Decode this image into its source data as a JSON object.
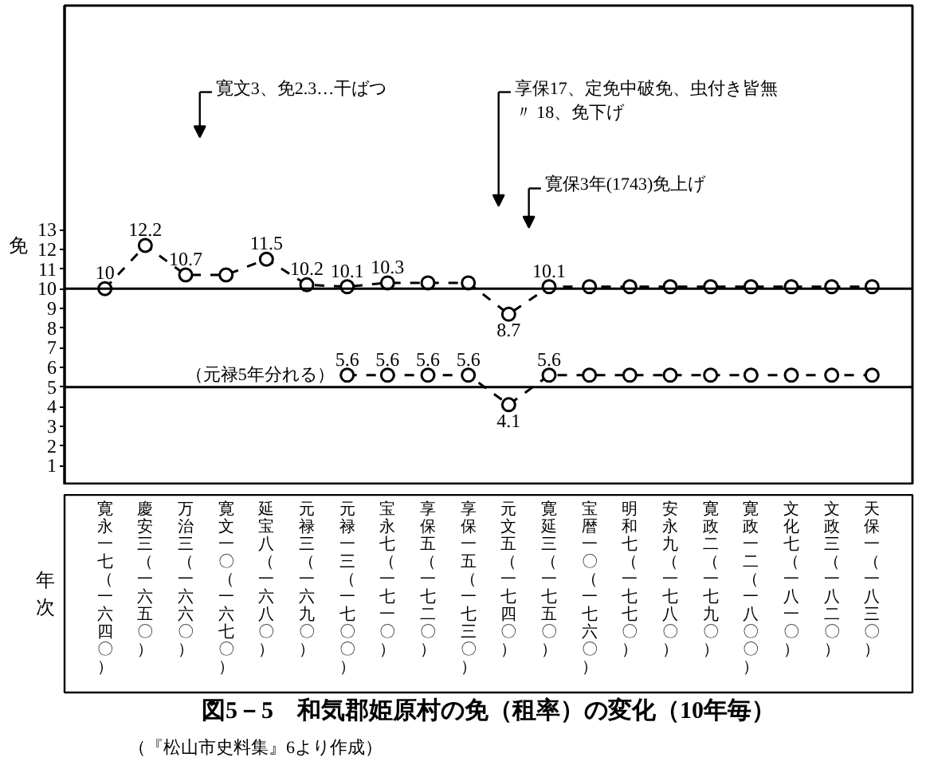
{
  "chart_data": {
    "type": "line",
    "title": "図5－5　和気郡姫原村の免（租率）の変化（10年毎）",
    "xlabel": "年次",
    "ylabel": "免",
    "categories": [
      "寛永一七（一六四〇）",
      "慶安三（一六五〇）",
      "万治三（一六六〇）",
      "寛文一〇（一六七〇）",
      "延宝八（一六八〇）",
      "元禄三（一六九〇）",
      "元禄一三（一七〇〇）",
      "宝永七（一七一〇）",
      "享保五（一七二〇）",
      "享保一五（一七三〇）",
      "元文五（一七四〇）",
      "寛延三（一七五〇）",
      "宝暦一〇（一七六〇）",
      "明和七（一七七〇）",
      "安永九（一七八〇）",
      "寛政二（一七九〇）",
      "寛政一二（一八〇〇）",
      "文化七（一八一〇）",
      "文政三（一八二〇）",
      "天保一（一八三〇）"
    ],
    "series": [
      {
        "color": "#000000",
        "values": [
          10,
          12.2,
          10.7,
          10.7,
          11.5,
          10.2,
          10.1,
          10.3,
          10.3,
          10.3,
          8.7,
          10.1,
          10.1,
          10.1,
          10.1,
          10.1,
          10.1,
          10.1,
          10.1,
          10.1
        ],
        "value_labels": [
          "10",
          "12.2",
          "10.7",
          null,
          "11.5",
          "10.2",
          "10.1",
          "10.3",
          null,
          null,
          "8.7",
          "10.1",
          null,
          null,
          null,
          null,
          null,
          null,
          null,
          null
        ]
      },
      {
        "color": "#000000",
        "values": [
          null,
          null,
          null,
          null,
          null,
          null,
          5.6,
          5.6,
          5.6,
          5.6,
          4.1,
          5.6,
          5.6,
          5.6,
          5.6,
          5.6,
          5.6,
          5.6,
          5.6,
          5.6
        ],
        "value_labels": [
          null,
          null,
          null,
          null,
          null,
          null,
          "5.6",
          "5.6",
          "5.6",
          "5.6",
          "4.1",
          "5.6",
          null,
          null,
          null,
          null,
          null,
          null,
          null,
          null
        ]
      }
    ],
    "ylim": [
      0,
      24.4
    ],
    "yticks": [
      1,
      2,
      3,
      4,
      5,
      6,
      7,
      8,
      9,
      10,
      11,
      12,
      13
    ],
    "ref_lines": [
      {
        "axis": "y",
        "value": 10,
        "color": "#000000"
      },
      {
        "axis": "y",
        "value": 5,
        "color": "#000000"
      }
    ],
    "annotations": [
      "寛文3、免2.3…干ばつ",
      "享保17、定免中破免、虫付き皆無〃 18、免下げ",
      "寛保3年(1743)免上げ",
      {
        "text": "（元禄5年分れる）",
        "x": "元禄一三（一七〇〇）",
        "y": 5.6
      },
      "（『松山市史料集』6より作成）"
    ],
    "marker": "circle",
    "line_style": "dashed",
    "grid": false
  }
}
